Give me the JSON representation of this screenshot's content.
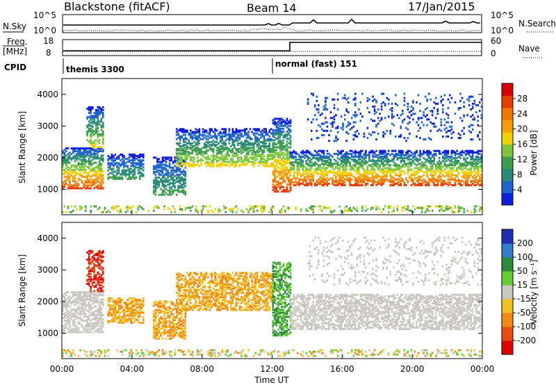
{
  "header": {
    "radar": "Blackstone (fitACF)",
    "beam": "Beam 14",
    "date": "17/Jan/2015"
  },
  "strips": {
    "nsky_label": "N.Sky",
    "nsky_ticks": [
      "10^5",
      "10^0"
    ],
    "nsearch_label": "N.Search",
    "nsearch_ticks": [
      "10^5",
      "10^0"
    ],
    "freq_label_top": "Freq.",
    "freq_label_bottom": "[MHz]",
    "freq_ticks": [
      "18",
      "8"
    ],
    "nave_label": "Nave",
    "nave_ticks": [
      "60",
      "0"
    ],
    "cpid_label": "CPID",
    "cpid_segments": [
      {
        "name": "themis 3300",
        "start_hour": 0
      },
      {
        "name": "normal (fast) 151",
        "start_hour": 12
      }
    ]
  },
  "chart_data": [
    {
      "type": "heatmap",
      "name": "power",
      "ylabel": "Slant Range [km]",
      "yticks": [
        "1000",
        "2000",
        "3000",
        "4000"
      ],
      "ylim": [
        200,
        4500
      ],
      "xlim": [
        0,
        24
      ],
      "colorbar_label": "Power [dB]",
      "colorbar_ticks": [
        "4",
        "8",
        "12",
        "16",
        "20",
        "24",
        "28"
      ],
      "colorbar_range": [
        0,
        32
      ],
      "colors": [
        "#0b1fe0",
        "#1f64c8",
        "#2c8a78",
        "#3c9c50",
        "#7cc63c",
        "#f0d000",
        "#f5a000",
        "#f07800",
        "#e83c00",
        "#d80000"
      ]
    },
    {
      "type": "heatmap",
      "name": "velocity",
      "ylabel": "Slant Range [km]",
      "yticks": [
        "1000",
        "2000",
        "3000",
        "4000"
      ],
      "ylim": [
        200,
        4500
      ],
      "xlim": [
        0,
        24
      ],
      "xlabel": "Time UT",
      "xticks": [
        "00:00",
        "04:00",
        "08:00",
        "12:00",
        "16:00",
        "20:00",
        "00:00"
      ],
      "colorbar_label": "Velocity [m s⁻¹]",
      "colorbar_ticks": [
        "200",
        "100",
        "50",
        "15",
        "-15",
        "-50",
        "-100",
        "-200"
      ],
      "colors": [
        "#1f2fb0",
        "#2e7ec8",
        "#2a8a3a",
        "#66cc33",
        "#c8c8c0",
        "#f0c020",
        "#f08a10",
        "#e84a10",
        "#e00000"
      ]
    }
  ]
}
